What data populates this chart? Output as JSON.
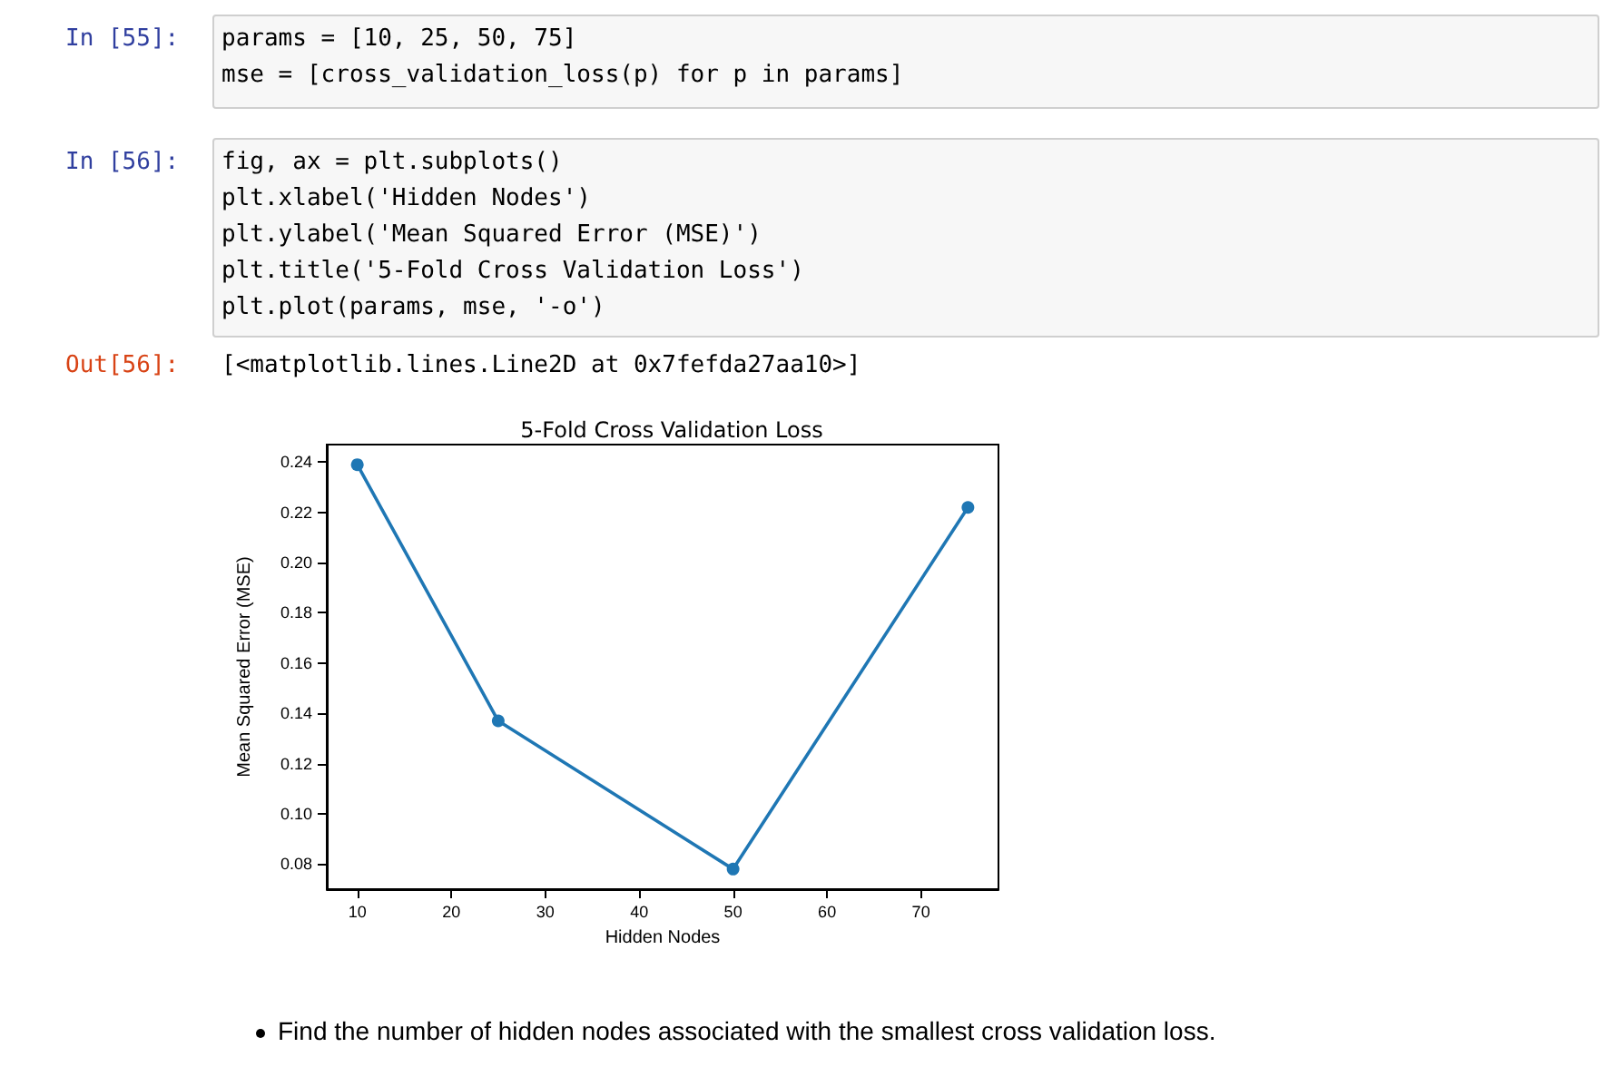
{
  "chart_data": {
    "type": "line",
    "title": "5-Fold Cross Validation Loss",
    "xlabel": "Hidden Nodes",
    "ylabel": "Mean Squared Error (MSE)",
    "x": [
      10,
      25,
      50,
      75
    ],
    "series": [
      {
        "color": "#1f77b4",
        "values": [
          0.239,
          0.137,
          0.078,
          0.222
        ]
      }
    ],
    "xlim": [
      6.75,
      78.25
    ],
    "xticks": [
      10,
      20,
      30,
      40,
      50,
      60,
      70
    ],
    "ylim": [
      0.07,
      0.247
    ],
    "yticks": [
      0.08,
      {
        "value": 0.1,
        "label": "0.10"
      },
      0.12,
      0.14,
      0.16,
      0.18,
      {
        "value": 0.2,
        "label": "0.20"
      },
      0.22,
      0.24
    ],
    "marker": "circle",
    "line_style": "solid",
    "grid": false,
    "annotations": [
      "In [55]:",
      "params = [10, 25, 50, 75]",
      "mse = [cross_validation_loss(p) for p in params]",
      "In [56]:",
      "fig, ax = plt.subplots()",
      "plt.xlabel('Hidden Nodes')",
      "plt.ylabel('Mean Squared Error (MSE)')",
      "plt.title('5-Fold Cross Validation Loss')",
      "plt.plot(params, mse, '-o')",
      "Out[56]:",
      "[<matplotlib.lines.Line2D at 0x7fefda27aa10>]",
      "Find the number of hidden nodes associated with the smallest cross validation loss."
    ]
  }
}
